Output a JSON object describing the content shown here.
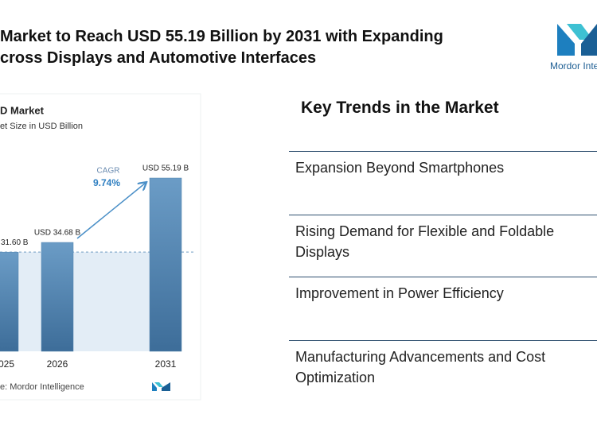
{
  "header": {
    "title_lines": [
      "Market to Reach USD 55.19 Billion by 2031 with Expanding",
      "cross Displays and Automotive Interfaces"
    ],
    "logo_text": "Mordor Inte"
  },
  "chart_data": {
    "type": "bar",
    "title": "D Market",
    "subtitle": "et Size in USD Billion",
    "categories": [
      "025",
      "2026",
      "2031"
    ],
    "values": [
      31.6,
      34.68,
      55.19
    ],
    "value_labels": [
      "31.60 B",
      "USD 34.68 B",
      "USD 55.19 B"
    ],
    "color": "#4f81ad",
    "annotation": {
      "label": "CAGR",
      "value": "9.74%"
    },
    "source": "e: Mordor Intelligence"
  },
  "trends": {
    "title": "Key Trends in the Market",
    "items": [
      "Expansion Beyond Smartphones",
      "Rising Demand for Flexible and Foldable Displays",
      "Improvement in Power Efficiency",
      "Manufacturing Advancements and Cost Optimization"
    ]
  }
}
